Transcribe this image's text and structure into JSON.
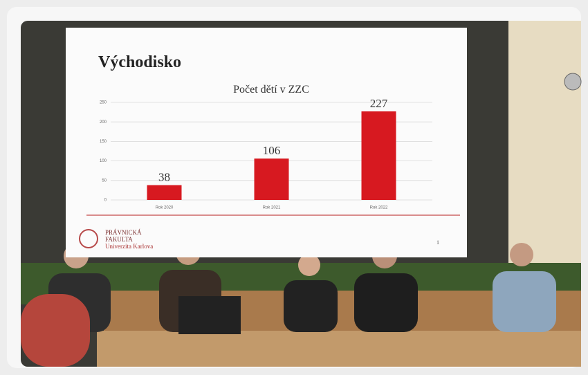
{
  "slide": {
    "heading": "Východisko",
    "logo": [
      "PRÁVNICKÁ",
      "FAKULTA",
      "Univerzita Karlova"
    ],
    "page": "1"
  },
  "chart_data": {
    "type": "bar",
    "title": "Počet dětí v ZZC",
    "categories": [
      "Rok 2020",
      "Rok 2021",
      "Rok 2022"
    ],
    "values": [
      38,
      106,
      227
    ],
    "color": "#d71920",
    "ylim": [
      0,
      250
    ],
    "yticks": [
      0,
      50,
      100,
      150,
      200,
      250
    ],
    "grid": true
  }
}
